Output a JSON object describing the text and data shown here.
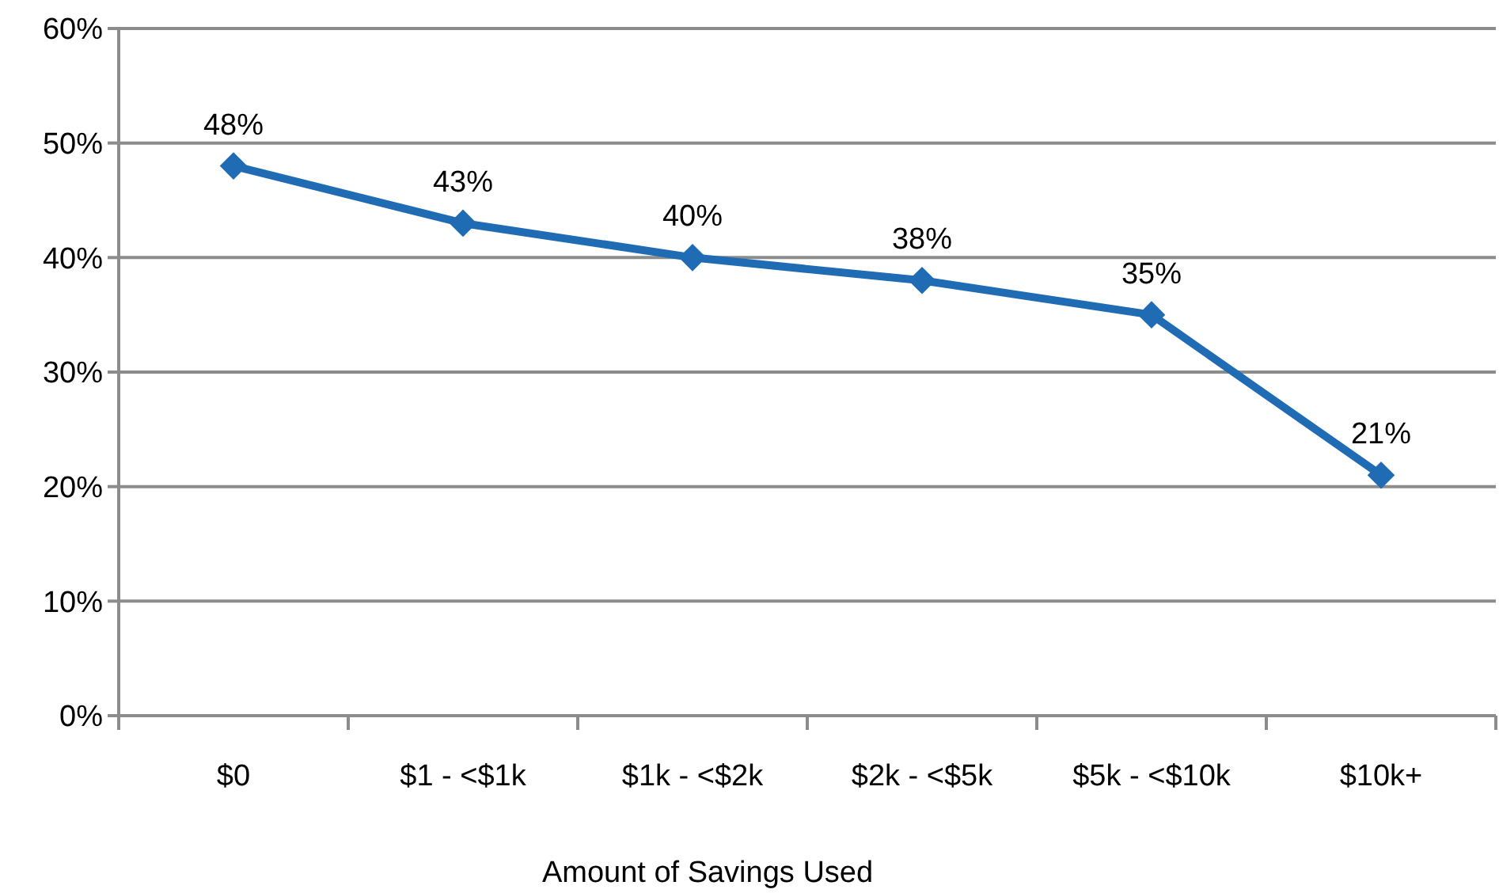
{
  "chart_data": {
    "type": "line",
    "xlabel": "Amount of Savings Used",
    "categories": [
      "$0",
      "$1 - <$1k",
      "$1k - <$2k",
      "$2k - <$5k",
      "$5k - <$10k",
      "$10k+"
    ],
    "series": [
      {
        "color": "#1f6cb5",
        "values": [
          48,
          43,
          40,
          38,
          35,
          21
        ],
        "value_labels": [
          "48%",
          "43%",
          "40%",
          "38%",
          "35%",
          "21%"
        ]
      }
    ],
    "ylim": [
      0,
      60
    ],
    "yticks": [
      {
        "value": 0,
        "label": "0%"
      },
      {
        "value": 10,
        "label": "10%"
      },
      {
        "value": 20,
        "label": "20%"
      },
      {
        "value": 30,
        "label": "30%"
      },
      {
        "value": 40,
        "label": "40%"
      },
      {
        "value": 50,
        "label": "50%"
      },
      {
        "value": 60,
        "label": "60%"
      }
    ],
    "grid": "y",
    "marker": "diamond",
    "line_style": "solid"
  }
}
